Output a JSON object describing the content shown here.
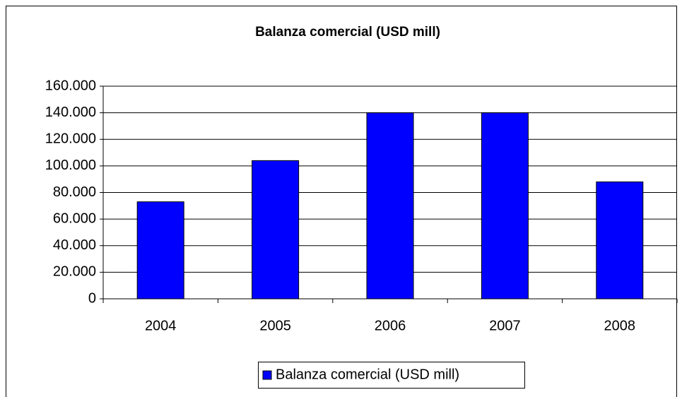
{
  "chart_data": {
    "type": "bar",
    "title": "Balanza comercial (USD mill)",
    "categories": [
      "2004",
      "2005",
      "2006",
      "2007",
      "2008"
    ],
    "series": [
      {
        "name": "Balanza comercial (USD mill)",
        "color": "#0000ff",
        "values": [
          73000,
          104000,
          140000,
          140000,
          88000
        ]
      }
    ],
    "ylim": [
      0,
      160000
    ],
    "yticks": [
      0,
      {
        "value": 20000,
        "label": "20.000"
      },
      {
        "value": 40000,
        "label": "40.000"
      },
      {
        "value": 60000,
        "label": "60.000"
      },
      {
        "value": 80000,
        "label": "80.000"
      },
      {
        "value": 100000,
        "label": "100.000"
      },
      {
        "value": 120000,
        "label": "120.000"
      },
      {
        "value": 140000,
        "label": "140.000"
      },
      {
        "value": 160000,
        "label": "160.000"
      }
    ],
    "grid": true,
    "legend": "bottom"
  }
}
